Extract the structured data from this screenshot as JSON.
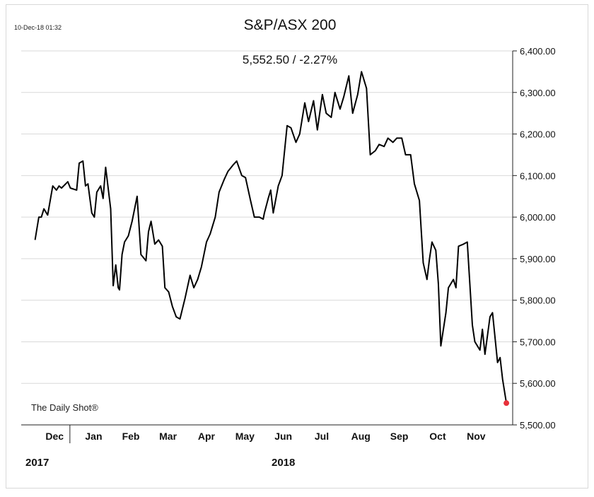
{
  "header": {
    "timestamp": "10-Dec-18 01:32",
    "title": "S&P/ASX 200",
    "subtitle": "5,552.50  /  -2.27%",
    "source": "The Daily Shot®"
  },
  "colors": {
    "line": "#000000",
    "last_point": "#e8313b",
    "grid": "#d9d9d9"
  },
  "chart_data": {
    "type": "line",
    "title": "S&P/ASX 200",
    "ylim": [
      5500,
      6400
    ],
    "y_ticks": [
      5500,
      5600,
      5700,
      5800,
      5900,
      6000,
      6100,
      6200,
      6300,
      6400
    ],
    "y_tick_labels": [
      "5,500.00",
      "5,600.00",
      "5,700.00",
      "5,800.00",
      "5,900.00",
      "6,000.00",
      "6,100.00",
      "6,200.00",
      "6,300.00",
      "6,400.00"
    ],
    "y_axis_position": "right",
    "grid": true,
    "x_tick_labels": [
      "Dec",
      "Jan",
      "Feb",
      "Mar",
      "Apr",
      "May",
      "Jun",
      "Jul",
      "Aug",
      "Sep",
      "Oct",
      "Nov"
    ],
    "year_labels": [
      "2017",
      "2018"
    ],
    "x": [
      "2017-12-01",
      "2017-12-04",
      "2017-12-06",
      "2017-12-08",
      "2017-12-11",
      "2017-12-13",
      "2017-12-15",
      "2017-12-18",
      "2017-12-20",
      "2017-12-22",
      "2017-12-27",
      "2017-12-29",
      "2018-01-03",
      "2018-01-05",
      "2018-01-08",
      "2018-01-10",
      "2018-01-12",
      "2018-01-15",
      "2018-01-17",
      "2018-01-19",
      "2018-01-22",
      "2018-01-24",
      "2018-01-26",
      "2018-01-30",
      "2018-02-01",
      "2018-02-03",
      "2018-02-05",
      "2018-02-06",
      "2018-02-08",
      "2018-02-10",
      "2018-02-13",
      "2018-02-16",
      "2018-02-20",
      "2018-02-23",
      "2018-02-27",
      "2018-03-01",
      "2018-03-03",
      "2018-03-06",
      "2018-03-09",
      "2018-03-12",
      "2018-03-14",
      "2018-03-17",
      "2018-03-20",
      "2018-03-23",
      "2018-03-26",
      "2018-03-28",
      "2018-03-30",
      "2018-04-03",
      "2018-04-06",
      "2018-04-09",
      "2018-04-12",
      "2018-04-16",
      "2018-04-19",
      "2018-04-23",
      "2018-04-26",
      "2018-04-30",
      "2018-05-03",
      "2018-05-07",
      "2018-05-10",
      "2018-05-14",
      "2018-05-17",
      "2018-05-21",
      "2018-05-24",
      "2018-05-28",
      "2018-05-31",
      "2018-06-01",
      "2018-06-04",
      "2018-06-06",
      "2018-06-08",
      "2018-06-12",
      "2018-06-15",
      "2018-06-19",
      "2018-06-22",
      "2018-06-26",
      "2018-06-29",
      "2018-07-03",
      "2018-07-06",
      "2018-07-10",
      "2018-07-13",
      "2018-07-17",
      "2018-07-20",
      "2018-07-24",
      "2018-07-27",
      "2018-07-31",
      "2018-08-03",
      "2018-08-07",
      "2018-08-10",
      "2018-08-14",
      "2018-08-17",
      "2018-08-21",
      "2018-08-24",
      "2018-08-28",
      "2018-08-31",
      "2018-09-04",
      "2018-09-07",
      "2018-09-11",
      "2018-09-14",
      "2018-09-18",
      "2018-09-21",
      "2018-09-25",
      "2018-09-28",
      "2018-10-02",
      "2018-10-05",
      "2018-10-08",
      "2018-10-10",
      "2018-10-12",
      "2018-10-15",
      "2018-10-17",
      "2018-10-19",
      "2018-10-23",
      "2018-10-25",
      "2018-10-29",
      "2018-10-31",
      "2018-11-02",
      "2018-11-06",
      "2018-11-09",
      "2018-11-13",
      "2018-11-15",
      "2018-11-19",
      "2018-11-21",
      "2018-11-23",
      "2018-11-27",
      "2018-11-29",
      "2018-12-03",
      "2018-12-05",
      "2018-12-07",
      "2018-12-10"
    ],
    "series": [
      {
        "values": [
          5945,
          6000,
          6000,
          6020,
          6005,
          6040,
          6075,
          6065,
          6075,
          6070,
          6085,
          6070,
          6065,
          6130,
          6135,
          6075,
          6080,
          6010,
          6000,
          6060,
          6075,
          6045,
          6120,
          6020,
          5835,
          5885,
          5830,
          5825,
          5910,
          5940,
          5955,
          5990,
          6050,
          5910,
          5895,
          5965,
          5990,
          5935,
          5945,
          5930,
          5830,
          5820,
          5785,
          5760,
          5755,
          5780,
          5805,
          5860,
          5830,
          5850,
          5880,
          5940,
          5960,
          6000,
          6060,
          6090,
          6110,
          6125,
          6135,
          6100,
          6095,
          6040,
          6000,
          6000,
          5995,
          6010,
          6045,
          6065,
          6010,
          6075,
          6100,
          6220,
          6215,
          6180,
          6200,
          6275,
          6230,
          6280,
          6210,
          6295,
          6250,
          6240,
          6300,
          6260,
          6290,
          6340,
          6250,
          6295,
          6350,
          6310,
          6150,
          6160,
          6175,
          6170,
          6190,
          6180,
          6190,
          6190,
          6150,
          6150,
          6080,
          6040,
          5890,
          5850,
          5900,
          5940,
          5920,
          5840,
          5690,
          5770,
          5830,
          5850,
          5830,
          5930,
          5935,
          5940,
          5740,
          5700,
          5680,
          5730,
          5670,
          5760,
          5770,
          5650,
          5662,
          5610,
          5552.5
        ]
      }
    ],
    "last_value": 5552.5,
    "change_pct": -2.27
  }
}
